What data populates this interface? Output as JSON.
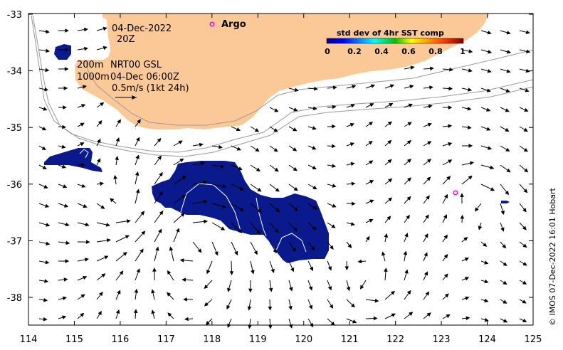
{
  "map": {
    "date_label": "04-Dec-2022",
    "time_label": "20Z",
    "contour_200": "200m",
    "contour_1000": "1000m",
    "product_label": "NRT00 GSL",
    "product_time": "04-Dec 06:00Z",
    "scale_label": "0.5m/s (1kt 24h)",
    "argo_label": "Argo",
    "credit": "© IMOS 07-Dec-2022 16:01 Hobart",
    "colorbar": {
      "title": "std dev of 4hr SST comp",
      "ticks": [
        "0",
        "0.2",
        "0.4",
        "0.6",
        "0.8",
        "1"
      ]
    },
    "lon_ticks": [
      "114",
      "115",
      "116",
      "117",
      "118",
      "119",
      "120",
      "121",
      "122",
      "123",
      "124",
      "125"
    ],
    "lat_ticks": [
      "-33",
      "-34",
      "-35",
      "-36",
      "-37",
      "-38"
    ],
    "colors": {
      "land": "#fbc998",
      "sst_patch": "#0a1a8c",
      "argo_marker": "#e600e6",
      "bathymetry": "#9a9a9a"
    }
  }
}
